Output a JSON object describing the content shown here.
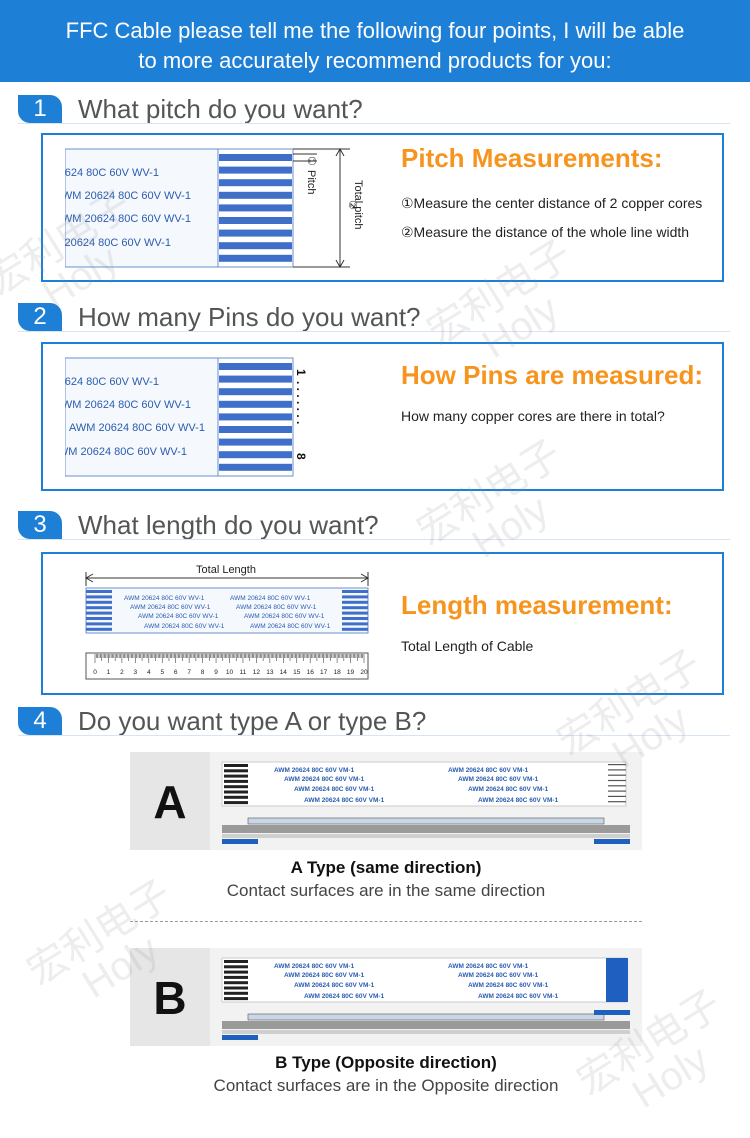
{
  "header": {
    "line1": "FFC Cable please tell me the following four points, I will be able",
    "line2": "to more accurately recommend products for you:"
  },
  "sections": [
    {
      "number": "1",
      "question": "What pitch do you want?",
      "panel_title": "Pitch Measurements:",
      "notes": [
        "①Measure the center distance of 2 copper cores",
        "②Measure the distance of the whole line width"
      ],
      "labels": {
        "mark1": "①",
        "pitch": "Pitch",
        "mark2": "②",
        "total_pitch": "Total pitch"
      }
    },
    {
      "number": "2",
      "question": "How many Pins do you want?",
      "panel_title": "How Pins are measured:",
      "notes": [
        "How many copper cores are there in total?"
      ],
      "labels": {
        "pin_first": "1",
        "pin_dots": ". . . . . . .",
        "pin_last": "8"
      }
    },
    {
      "number": "3",
      "question": "What length do you want?",
      "panel_title": "Length measurement:",
      "notes": [
        "Total Length of Cable"
      ],
      "labels": {
        "total_length": "Total Length"
      },
      "ruler": [
        0,
        1,
        2,
        3,
        4,
        5,
        6,
        7,
        8,
        9,
        10,
        11,
        12,
        13,
        14,
        15,
        16,
        17,
        18,
        19,
        20
      ]
    },
    {
      "number": "4",
      "question": "Do you want type A or type B?"
    }
  ],
  "cable_print": "AWM 20624 80C 60V WV-1",
  "type_cable_print": "AWM 20624 80C 60V VM-1",
  "types": [
    {
      "letter": "A",
      "title": "A Type  (same direction)",
      "description": "Contact surfaces are in the same direction"
    },
    {
      "letter": "B",
      "title": "B Type (Opposite direction)",
      "description": "Contact surfaces are in the Opposite direction"
    }
  ],
  "watermark": {
    "cn": "宏利电子",
    "en": "Holy"
  }
}
